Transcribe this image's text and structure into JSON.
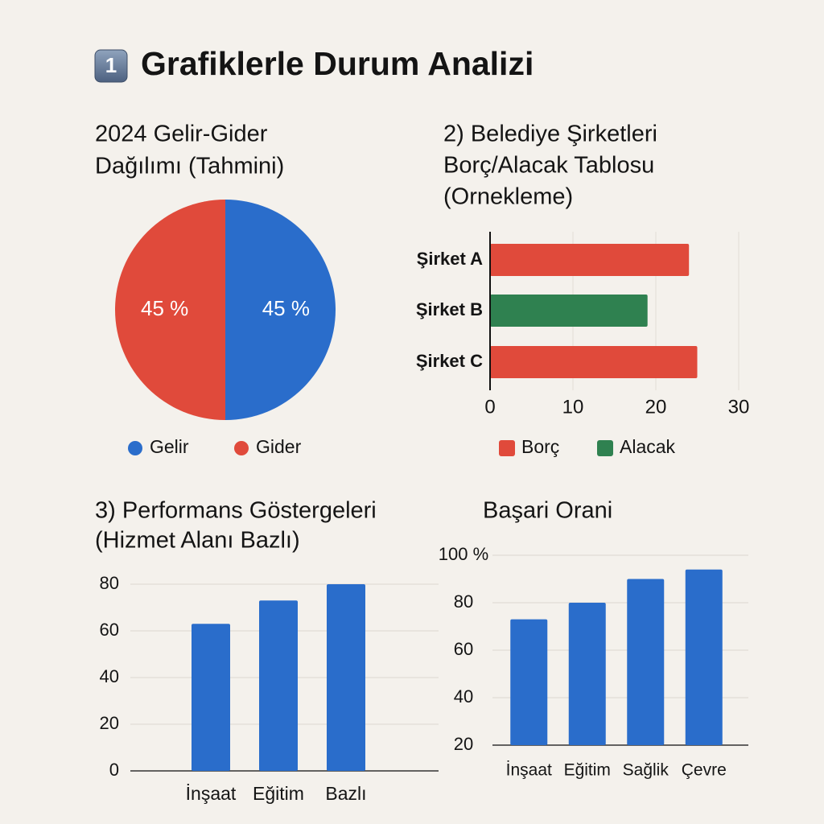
{
  "title_badge": "1",
  "title": "Grafiklerle Durum Analizi",
  "chart_data": [
    {
      "type": "pie",
      "title": [
        "2024 Gelir-Gider",
        "Dağılımı (Tahmini)"
      ],
      "categories": [
        "Gelir",
        "Gider"
      ],
      "values": [
        45,
        45
      ],
      "value_labels": [
        "45 %",
        "45 %"
      ],
      "colors": [
        "#2a6dcb",
        "#e04a3b"
      ],
      "legend": "bottom"
    },
    {
      "type": "hbar",
      "title": [
        "2) Belediye Şirketleri",
        "Borç/Alacak Tablosu",
        "(Ornekleme)"
      ],
      "categories": [
        "Şirket A",
        "Şirket B",
        "Şirket C"
      ],
      "series": [
        {
          "name": "Borç",
          "color": "#e04a3b",
          "values": [
            24,
            null,
            25
          ]
        },
        {
          "name": "Alacak",
          "color": "#2f8150",
          "values": [
            null,
            19,
            null
          ]
        }
      ],
      "xlim": [
        0,
        30
      ],
      "xticks": [
        0,
        10,
        20,
        30
      ],
      "grid": true,
      "legend": "bottom"
    },
    {
      "type": "bar",
      "title": [
        "3) Performans Göstergeleri",
        "(Hizmet Alanı Bazlı)"
      ],
      "categories": [
        "İnşaat",
        "Eğitim",
        "Bazlı"
      ],
      "values": [
        63,
        73,
        80
      ],
      "color": "#2a6dcb",
      "ylim": [
        0,
        80
      ],
      "yticks": [
        0,
        20,
        40,
        60,
        80
      ],
      "grid": true
    },
    {
      "type": "bar",
      "title": [
        "Başari Orani"
      ],
      "categories": [
        "İnşaat",
        "Eğitim",
        "Sağlik",
        "Çevre"
      ],
      "values": [
        73,
        80,
        90,
        94
      ],
      "color": "#2a6dcb",
      "ylim": [
        20,
        100
      ],
      "yticks": [
        20,
        40,
        60,
        80,
        {
          "value": 100,
          "label": "100 %"
        }
      ],
      "grid": true
    }
  ]
}
